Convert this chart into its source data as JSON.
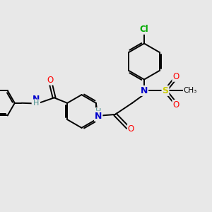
{
  "bg_color": "#e8e8e8",
  "atom_colors": {
    "C": "#000000",
    "N": "#0000cc",
    "O": "#ff0000",
    "S": "#cccc00",
    "Cl": "#00aa00",
    "H": "#4a9090"
  },
  "bond_color": "#000000",
  "figsize": [
    3.0,
    3.0
  ],
  "dpi": 100
}
